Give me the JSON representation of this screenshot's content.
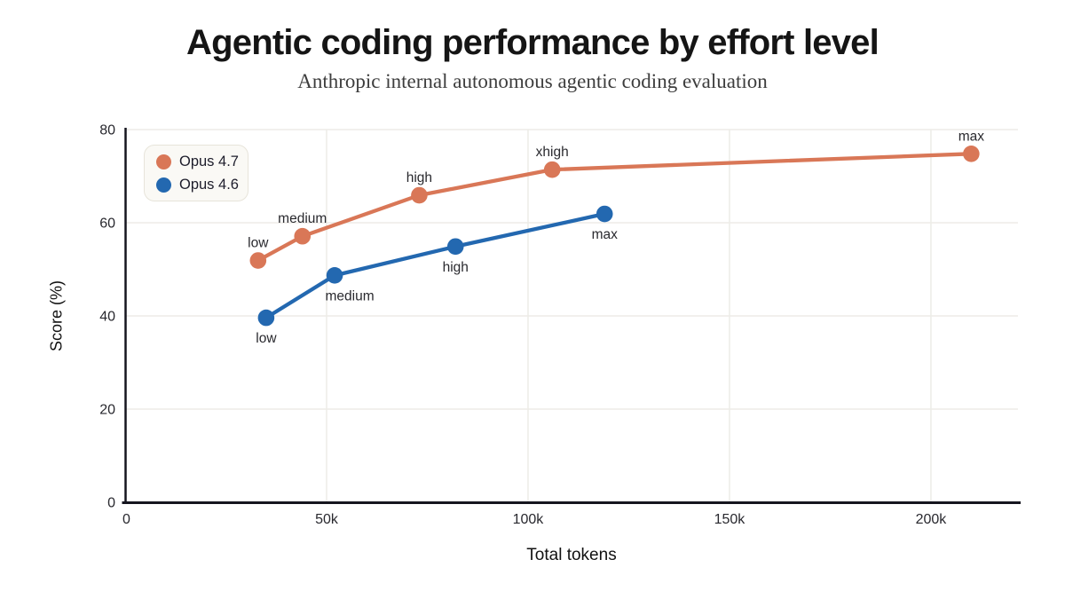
{
  "header": {
    "title": "Agentic coding performance by effort level",
    "subtitle": "Anthropic internal autonomous agentic coding evaluation"
  },
  "legend": {
    "items": [
      {
        "label": "Opus 4.7",
        "color": "#d97757"
      },
      {
        "label": "Opus 4.6",
        "color": "#2368b0"
      }
    ]
  },
  "chart_data": {
    "type": "line",
    "title": "Agentic coding performance by effort level",
    "subtitle": "Anthropic internal autonomous agentic coding evaluation",
    "xlabel": "Total tokens",
    "ylabel": "Score (%)",
    "xlim": [
      0,
      221600
    ],
    "ylim": [
      0,
      80
    ],
    "grid": true,
    "legend_position": "top-left",
    "x_ticks": [
      {
        "value": 0,
        "label": "0"
      },
      {
        "value": 50000,
        "label": "50k"
      },
      {
        "value": 100000,
        "label": "100k"
      },
      {
        "value": 150000,
        "label": "150k"
      },
      {
        "value": 200000,
        "label": "200k"
      }
    ],
    "y_ticks": [
      {
        "value": 0,
        "label": "0"
      },
      {
        "value": 20,
        "label": "20"
      },
      {
        "value": 40,
        "label": "40"
      },
      {
        "value": 60,
        "label": "60"
      },
      {
        "value": 80,
        "label": "80"
      }
    ],
    "series": [
      {
        "name": "Opus 4.7",
        "color": "#d97757",
        "points": [
          {
            "x": 33000,
            "y": 51.9,
            "label": "low",
            "label_pos": "above"
          },
          {
            "x": 44000,
            "y": 57.1,
            "label": "medium",
            "label_pos": "above"
          },
          {
            "x": 73000,
            "y": 65.9,
            "label": "high",
            "label_pos": "above"
          },
          {
            "x": 106000,
            "y": 71.4,
            "label": "xhigh",
            "label_pos": "above"
          },
          {
            "x": 210000,
            "y": 74.8,
            "label": "max",
            "label_pos": "above"
          }
        ]
      },
      {
        "name": "Opus 4.6",
        "color": "#2368b0",
        "points": [
          {
            "x": 35000,
            "y": 39.6,
            "label": "low",
            "label_pos": "below"
          },
          {
            "x": 52000,
            "y": 48.7,
            "label": "medium",
            "label_pos": "below-right"
          },
          {
            "x": 82000,
            "y": 54.9,
            "label": "high",
            "label_pos": "below"
          },
          {
            "x": 119000,
            "y": 61.9,
            "label": "max",
            "label_pos": "below"
          }
        ]
      }
    ]
  }
}
